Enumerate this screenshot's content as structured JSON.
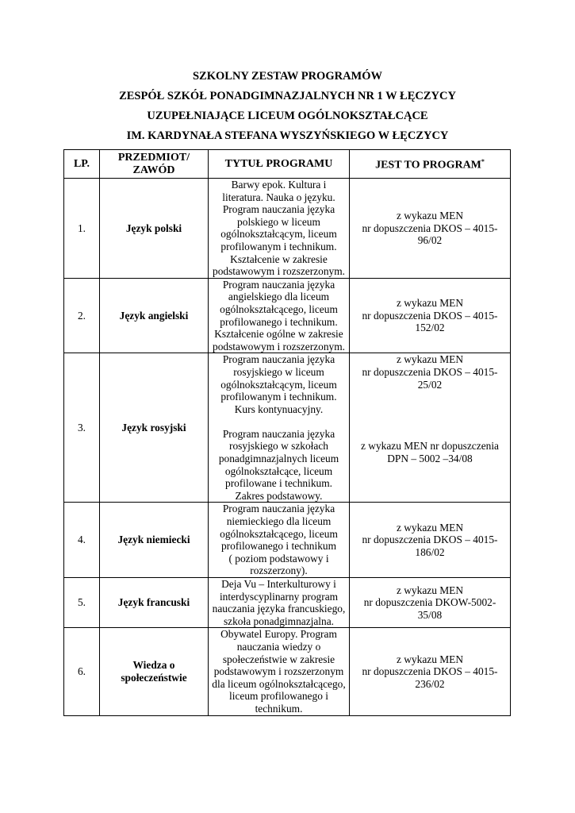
{
  "titles": [
    "SZKOLNY ZESTAW PROGRAMÓW",
    "ZESPÓŁ SZKÓŁ PONADGIMNAZJALNYCH NR 1 W ŁĘCZYCY",
    "UZUPEŁNIAJĄCE LICEUM OGÓLNOKSZTAŁCĄCE",
    "IM. KARDYNAŁA STEFANA WYSZYŃSKIEGO W ŁĘCZYCY"
  ],
  "table": {
    "headers": {
      "lp": "LP.",
      "subject": [
        "PRZEDMIOT/",
        "ZAWÓD"
      ],
      "title": "TYTUŁ PROGRAMU",
      "source": "JEST TO PROGRAM",
      "source_mark": "*"
    },
    "rows": [
      {
        "lp": "1.",
        "subject": [
          "Język polski"
        ],
        "title": [
          "Barwy epok. Kultura i",
          "literatura. Nauka o języku.",
          "Program nauczania języka",
          "polskiego w liceum",
          "ogólnokształcącym, liceum",
          "profilowanym i technikum.",
          "Kształcenie w zakresie",
          "podstawowym i rozszerzonym."
        ],
        "source": [
          "z wykazu MEN",
          "nr dopuszczenia DKOS – 4015-",
          "96/02"
        ]
      },
      {
        "lp": "2.",
        "subject": [
          "Język angielski"
        ],
        "title": [
          "Program nauczania języka",
          "angielskiego dla liceum",
          "ogólnokształcącego, liceum",
          "profilowanego i technikum.",
          "Kształcenie ogólne w zakresie",
          "podstawowym i rozszerzonym."
        ],
        "source": [
          "z wykazu MEN",
          "nr dopuszczenia DKOS – 4015-",
          "152/02"
        ]
      },
      {
        "lp": "3.",
        "subject": [
          "Język rosyjski"
        ],
        "title": [
          "Program nauczania języka",
          "rosyjskiego w liceum",
          "ogólnokształcącym, liceum",
          "profilowanym i technikum.",
          "Kurs kontynuacyjny.",
          "",
          "Program nauczania języka",
          "rosyjskiego w szkołach",
          "ponadgimnazjalnych liceum",
          "ogólnokształcące, liceum",
          "profilowane i technikum.",
          "Zakres podstawowy."
        ],
        "source": [
          "z wykazu MEN",
          "nr dopuszczenia DKOS – 4015-",
          "25/02",
          "",
          "",
          "",
          "",
          "z wykazu MEN nr dopuszczenia",
          "DPN – 5002 –34/08"
        ],
        "source_top": true
      },
      {
        "lp": "4.",
        "subject": [
          "Język niemiecki"
        ],
        "title": [
          "Program nauczania języka",
          "niemieckiego dla liceum",
          "ogólnokształcącego, liceum",
          "profilowanego i technikum",
          "( poziom podstawowy i",
          "rozszerzony)."
        ],
        "source": [
          "z wykazu MEN",
          "nr dopuszczenia DKOS – 4015-",
          "186/02"
        ]
      },
      {
        "lp": "5.",
        "subject": [
          "Język francuski"
        ],
        "title": [
          "Deja Vu – Interkulturowy i",
          "interdyscyplinarny program",
          "nauczania języka francuskiego,",
          "szkoła ponadgimnazjalna."
        ],
        "source": [
          "z wykazu MEN",
          "nr dopuszczenia DKOW-5002-",
          "35/08"
        ]
      },
      {
        "lp": "6.",
        "subject": [
          "Wiedza o",
          "społeczeństwie"
        ],
        "title": [
          "Obywatel Europy. Program",
          "nauczania wiedzy o",
          "społeczeństwie w zakresie",
          "podstawowym i rozszerzonym",
          "dla liceum ogólnokształcącego,",
          "liceum profilowanego i",
          "technikum."
        ],
        "source": [
          "z wykazu MEN",
          "nr dopuszczenia DKOS – 4015-",
          "236/02"
        ]
      }
    ]
  }
}
